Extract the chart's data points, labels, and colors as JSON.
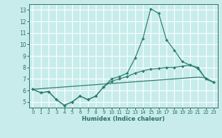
{
  "xlabel": "Humidex (Indice chaleur)",
  "bg_color": "#c8ecec",
  "grid_color": "#ffffff",
  "line_color": "#2e7d6e",
  "xlim": [
    -0.5,
    23.5
  ],
  "ylim": [
    4.5,
    13.5
  ],
  "yticks": [
    5,
    6,
    7,
    8,
    9,
    10,
    11,
    12,
    13
  ],
  "xticks": [
    0,
    1,
    2,
    3,
    4,
    5,
    6,
    7,
    8,
    9,
    10,
    11,
    12,
    13,
    14,
    15,
    16,
    17,
    18,
    19,
    20,
    21,
    22,
    23
  ],
  "x": [
    0,
    1,
    2,
    3,
    4,
    5,
    6,
    7,
    8,
    9,
    10,
    11,
    12,
    13,
    14,
    15,
    16,
    17,
    18,
    19,
    20,
    21,
    22,
    23
  ],
  "y_spike": [
    6.1,
    5.8,
    5.9,
    5.2,
    4.7,
    5.0,
    5.5,
    5.2,
    5.5,
    6.3,
    7.0,
    7.2,
    7.5,
    8.8,
    10.5,
    13.1,
    12.7,
    10.4,
    9.5,
    8.5,
    8.2,
    7.9,
    7.0,
    6.7
  ],
  "y_linear": [
    6.1,
    6.15,
    6.2,
    6.25,
    6.3,
    6.35,
    6.4,
    6.45,
    6.5,
    6.55,
    6.6,
    6.65,
    6.7,
    6.75,
    6.8,
    6.85,
    6.9,
    6.95,
    7.0,
    7.05,
    7.1,
    7.15,
    7.1,
    6.7
  ],
  "y_mid": [
    6.1,
    5.8,
    5.9,
    5.2,
    4.7,
    5.0,
    5.5,
    5.2,
    5.5,
    6.3,
    6.8,
    7.0,
    7.2,
    7.5,
    7.7,
    7.85,
    7.9,
    8.0,
    8.0,
    8.1,
    8.2,
    8.0,
    7.0,
    6.7
  ]
}
